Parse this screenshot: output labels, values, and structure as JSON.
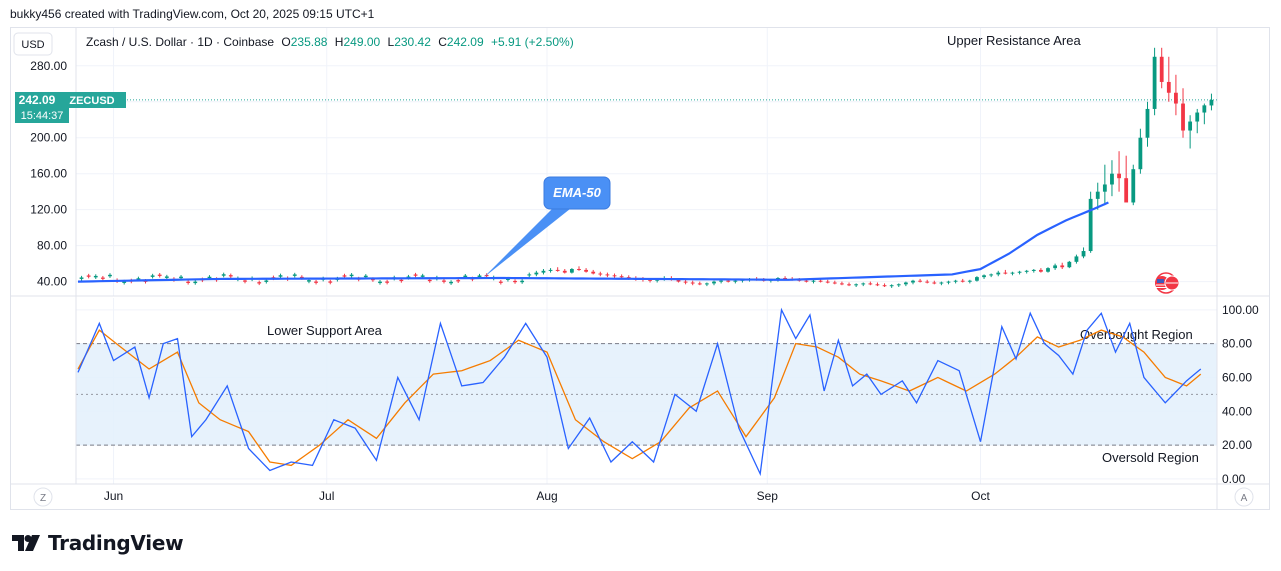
{
  "header": {
    "credit": "bukky456 created with TradingView.com, Oct 20, 2025 09:15 UTC+1"
  },
  "brand": {
    "name": "TradingView"
  },
  "colors": {
    "up": "#089981",
    "down": "#f23645",
    "ema": "#2962ff",
    "rsi": "#2962ff",
    "rsi_ma": "#f57c00",
    "badge": "#26a69a",
    "rsi_band": "#e3f0fc",
    "callout": "#4a90f5"
  },
  "chart_data": [
    {
      "type": "candlestick",
      "currency": "USD",
      "symbol_title": "Zcash / U.S. Dollar · 1D · Coinbase",
      "ohlc_readout": {
        "O_label": "O",
        "O": "235.88",
        "H_label": "H",
        "H": "249.00",
        "L_label": "L",
        "L": "230.42",
        "C_label": "C",
        "C": "242.09",
        "change": "+5.91 (+2.50%)"
      },
      "last_price": "242.09",
      "ticker": "ZECUSD",
      "countdown": "15:44:37",
      "y_ticks": [
        "280.00",
        "240.00",
        "200.00",
        "160.00",
        "120.00",
        "80.00",
        "40.00"
      ],
      "ylim": [
        24,
        322
      ],
      "x_ticks": [
        "Jun",
        "Jul",
        "Aug",
        "Sep",
        "Oct"
      ],
      "x_tick_days": [
        5,
        35,
        66,
        97,
        127
      ],
      "annotations": {
        "upper": "Upper Resistance Area",
        "ema_callout": "EMA-50"
      },
      "candles_prefix": [
        [
          47,
          50,
          45,
          48
        ],
        [
          48,
          52,
          46,
          50
        ],
        [
          50,
          54,
          48,
          52
        ],
        [
          52,
          55,
          50,
          53
        ],
        [
          53,
          56,
          51,
          52
        ],
        [
          52,
          54,
          49,
          50
        ],
        [
          50,
          55,
          49,
          54
        ],
        [
          54,
          57,
          52,
          53
        ],
        [
          53,
          55,
          50,
          51
        ],
        [
          51,
          53,
          48,
          49
        ],
        [
          49,
          51,
          46,
          48
        ],
        [
          48,
          50,
          45,
          47
        ],
        [
          47,
          49,
          44,
          46
        ],
        [
          46,
          48,
          43,
          45
        ],
        [
          45,
          47,
          42,
          44
        ],
        [
          44,
          46,
          41,
          43
        ],
        [
          43,
          45,
          40,
          42
        ],
        [
          42,
          44,
          39,
          41
        ],
        [
          41,
          44,
          39,
          43
        ],
        [
          43,
          46,
          41,
          44
        ],
        [
          44,
          46,
          41,
          42
        ],
        [
          42,
          44,
          39,
          40
        ],
        [
          40,
          42,
          37,
          39
        ],
        [
          39,
          41,
          36,
          38
        ],
        [
          38,
          40,
          36,
          37
        ],
        [
          37,
          39,
          35,
          38
        ],
        [
          38,
          41,
          36,
          40
        ],
        [
          40,
          42,
          38,
          41
        ],
        [
          41,
          43,
          39,
          40
        ],
        [
          40,
          42,
          38,
          41
        ],
        [
          41,
          43,
          39,
          42
        ],
        [
          42,
          44,
          40,
          43
        ],
        [
          43,
          45,
          41,
          42
        ],
        [
          42,
          44,
          40,
          41
        ],
        [
          41,
          43,
          39,
          42
        ],
        [
          42,
          45,
          40,
          44
        ],
        [
          44,
          46,
          42,
          43
        ],
        [
          43,
          45,
          41,
          42
        ],
        [
          42,
          44,
          40,
          41
        ],
        [
          41,
          43,
          39,
          40
        ],
        [
          40,
          42,
          38,
          41
        ],
        [
          41,
          43,
          39,
          40
        ],
        [
          40,
          42,
          38,
          39
        ],
        [
          39,
          41,
          37,
          38
        ],
        [
          38,
          40,
          36,
          37
        ],
        [
          37,
          39,
          35,
          36
        ],
        [
          36,
          38,
          34,
          37
        ],
        [
          37,
          39,
          35,
          38
        ],
        [
          38,
          40,
          36,
          37
        ],
        [
          37,
          39,
          35,
          36
        ],
        [
          36,
          38,
          34,
          35
        ],
        [
          35,
          37,
          33,
          36
        ],
        [
          36,
          38,
          34,
          37
        ],
        [
          37,
          40,
          35,
          39
        ],
        [
          39,
          42,
          37,
          41
        ],
        [
          41,
          43,
          39,
          40
        ],
        [
          40,
          42,
          38,
          39
        ],
        [
          39,
          41,
          37,
          38
        ],
        [
          38,
          40,
          36,
          39
        ],
        [
          39,
          41,
          37,
          40
        ],
        [
          40,
          42,
          38,
          41
        ],
        [
          41,
          43,
          39,
          40
        ],
        [
          40,
          42,
          38,
          41
        ],
        [
          41,
          46,
          40,
          45
        ],
        [
          45,
          48,
          43,
          47
        ],
        [
          47,
          49,
          45,
          48
        ],
        [
          48,
          52,
          46,
          50
        ],
        [
          50,
          53,
          48,
          49
        ],
        [
          49,
          51,
          47,
          50
        ],
        [
          50,
          52,
          48,
          51
        ],
        [
          51,
          53,
          49,
          52
        ],
        [
          52,
          54,
          50,
          53
        ],
        [
          53,
          55,
          50,
          51
        ],
        [
          51,
          56,
          50,
          55
        ],
        [
          55,
          60,
          53,
          58
        ],
        [
          58,
          61,
          54,
          56
        ],
        [
          56,
          63,
          55,
          62
        ],
        [
          62,
          70,
          60,
          68
        ],
        [
          68,
          78,
          66,
          74
        ],
        [
          74,
          140,
          72,
          132
        ],
        [
          132,
          150,
          120,
          140
        ],
        [
          140,
          170,
          125,
          148
        ],
        [
          148,
          175,
          135,
          160
        ],
        [
          160,
          185,
          140,
          155
        ],
        [
          155,
          180,
          130,
          128
        ],
        [
          128,
          170,
          125,
          165
        ],
        [
          165,
          210,
          160,
          200
        ],
        [
          200,
          240,
          190,
          232
        ],
        [
          232,
          300,
          225,
          290
        ],
        [
          290,
          300,
          255,
          262
        ],
        [
          262,
          290,
          240,
          250
        ],
        [
          250,
          270,
          225,
          238
        ],
        [
          238,
          255,
          200,
          208
        ],
        [
          208,
          225,
          188,
          218
        ],
        [
          218,
          232,
          205,
          228
        ],
        [
          228,
          238,
          215,
          236
        ],
        [
          235.88,
          249,
          230.42,
          242.09
        ]
      ],
      "ema50_keypoints": [
        [
          0,
          40
        ],
        [
          20,
          43
        ],
        [
          60,
          44
        ],
        [
          100,
          42
        ],
        [
          123,
          48
        ],
        [
          127,
          54
        ],
        [
          131,
          71
        ],
        [
          135,
          92
        ],
        [
          139,
          108
        ],
        [
          143,
          121
        ],
        [
          145,
          128
        ]
      ]
    },
    {
      "type": "line",
      "indicator": "RSI",
      "y_ticks": [
        "100.00",
        "80.00",
        "60.00",
        "40.00",
        "20.00",
        "0.00"
      ],
      "ylim": [
        -3,
        107
      ],
      "levels": [
        80,
        50,
        20
      ],
      "annotations": {
        "lower": "Lower Support Area",
        "overbought": "Overbought Region",
        "oversold": "Oversold Region"
      },
      "rsi_keypoints": [
        [
          0,
          63
        ],
        [
          3,
          92
        ],
        [
          5,
          70
        ],
        [
          8,
          78
        ],
        [
          10,
          48
        ],
        [
          12,
          80
        ],
        [
          14,
          83
        ],
        [
          16,
          25
        ],
        [
          18,
          35
        ],
        [
          21,
          55
        ],
        [
          24,
          18
        ],
        [
          27,
          5
        ],
        [
          30,
          10
        ],
        [
          33,
          8
        ],
        [
          36,
          35
        ],
        [
          39,
          30
        ],
        [
          42,
          11
        ],
        [
          45,
          60
        ],
        [
          48,
          35
        ],
        [
          51,
          92
        ],
        [
          54,
          55
        ],
        [
          57,
          57
        ],
        [
          60,
          72
        ],
        [
          63,
          92
        ],
        [
          66,
          72
        ],
        [
          69,
          18
        ],
        [
          72,
          36
        ],
        [
          75,
          10
        ],
        [
          78,
          22
        ],
        [
          81,
          10
        ],
        [
          84,
          50
        ],
        [
          87,
          40
        ],
        [
          90,
          80
        ],
        [
          93,
          30
        ],
        [
          96,
          3
        ],
        [
          99,
          100
        ],
        [
          101,
          83
        ],
        [
          103,
          97
        ],
        [
          105,
          52
        ],
        [
          107,
          82
        ],
        [
          109,
          55
        ],
        [
          111,
          62
        ],
        [
          113,
          50
        ],
        [
          116,
          58
        ],
        [
          118,
          45
        ],
        [
          121,
          70
        ],
        [
          124,
          64
        ],
        [
          127,
          22
        ],
        [
          130,
          90
        ],
        [
          132,
          71
        ],
        [
          134,
          98
        ],
        [
          136,
          80
        ],
        [
          138,
          73
        ],
        [
          140,
          62
        ],
        [
          142,
          88
        ],
        [
          144,
          98
        ],
        [
          146,
          75
        ],
        [
          148,
          92
        ],
        [
          150,
          60
        ],
        [
          153,
          45
        ],
        [
          156,
          58
        ],
        [
          158,
          65
        ]
      ],
      "rsi_ma_keypoints": [
        [
          0,
          65
        ],
        [
          3,
          88
        ],
        [
          6,
          78
        ],
        [
          10,
          65
        ],
        [
          14,
          75
        ],
        [
          17,
          45
        ],
        [
          20,
          35
        ],
        [
          24,
          28
        ],
        [
          27,
          10
        ],
        [
          30,
          8
        ],
        [
          34,
          20
        ],
        [
          38,
          35
        ],
        [
          42,
          24
        ],
        [
          46,
          45
        ],
        [
          50,
          62
        ],
        [
          54,
          64
        ],
        [
          58,
          70
        ],
        [
          62,
          82
        ],
        [
          66,
          75
        ],
        [
          70,
          35
        ],
        [
          74,
          22
        ],
        [
          78,
          12
        ],
        [
          82,
          22
        ],
        [
          86,
          42
        ],
        [
          90,
          52
        ],
        [
          94,
          25
        ],
        [
          98,
          48
        ],
        [
          101,
          80
        ],
        [
          104,
          78
        ],
        [
          107,
          72
        ],
        [
          110,
          62
        ],
        [
          113,
          58
        ],
        [
          117,
          52
        ],
        [
          121,
          60
        ],
        [
          125,
          52
        ],
        [
          129,
          62
        ],
        [
          132,
          72
        ],
        [
          135,
          84
        ],
        [
          138,
          78
        ],
        [
          141,
          82
        ],
        [
          144,
          88
        ],
        [
          147,
          84
        ],
        [
          150,
          75
        ],
        [
          153,
          60
        ],
        [
          156,
          55
        ],
        [
          158,
          62
        ]
      ]
    }
  ],
  "side_buttons": {
    "left": "Z",
    "right": "A"
  }
}
